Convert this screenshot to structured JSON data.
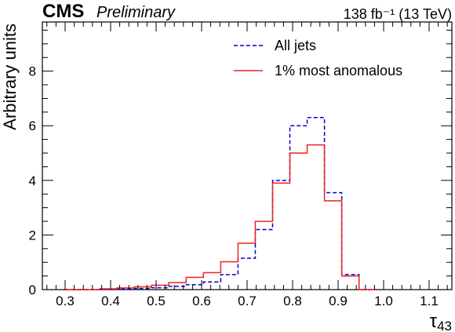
{
  "header": {
    "experiment": "CMS",
    "status": "Preliminary",
    "luminosity": "138 fb⁻¹ (13 TeV)"
  },
  "chart_data": {
    "type": "line",
    "style": "step-histogram",
    "xlabel": "τ43",
    "ylabel": "Arbitrary units",
    "xlim": [
      0.25,
      1.15
    ],
    "ylim": [
      0,
      9.8
    ],
    "xticks": [
      "0.3",
      "0.4",
      "0.5",
      "0.6",
      "0.7",
      "0.8",
      "0.9",
      "1.0",
      "1.1"
    ],
    "yticks": [
      "0",
      "2",
      "4",
      "6",
      "8"
    ],
    "bin_edges": [
      0.3,
      0.338,
      0.376,
      0.414,
      0.452,
      0.49,
      0.528,
      0.566,
      0.604,
      0.642,
      0.68,
      0.718,
      0.756,
      0.794,
      0.832,
      0.87,
      0.908,
      0.946,
      0.984
    ],
    "series": [
      {
        "name": "All jets",
        "color": "#0000cc",
        "dash": true,
        "values": [
          0.0,
          0.0,
          0.01,
          0.02,
          0.04,
          0.07,
          0.12,
          0.18,
          0.28,
          0.55,
          1.15,
          2.2,
          4.0,
          6.0,
          6.3,
          3.55,
          0.55,
          0.0
        ]
      },
      {
        "name": "1% most anomalous",
        "color": "#ee2222",
        "dash": false,
        "values": [
          0.0,
          0.0,
          0.03,
          0.06,
          0.1,
          0.16,
          0.26,
          0.45,
          0.62,
          1.02,
          1.7,
          2.5,
          3.9,
          5.0,
          5.3,
          3.25,
          0.5,
          0.0
        ]
      }
    ],
    "legend_position": "top-right",
    "grid": false
  }
}
